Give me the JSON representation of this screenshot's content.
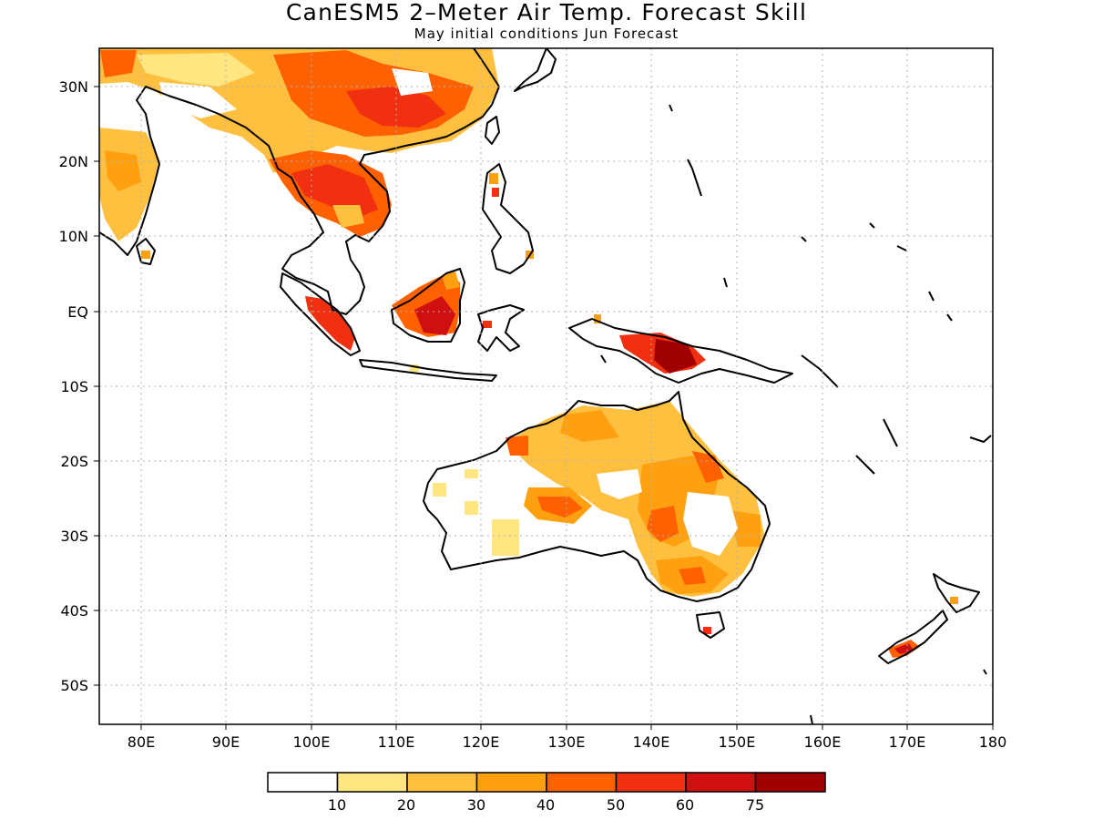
{
  "title": "CanESM5 2–Meter Air Temp. Forecast Skill",
  "subtitle": "May initial conditions  Jun Forecast",
  "map": {
    "region": "Maritime Continent / Australia / South & East Asia",
    "lon_range": [
      75,
      180
    ],
    "lat_range": [
      -55,
      35
    ],
    "grid": "dotted gray",
    "lon_ticks": [
      "80E",
      "90E",
      "100E",
      "110E",
      "120E",
      "130E",
      "140E",
      "150E",
      "160E",
      "170E",
      "180"
    ],
    "lat_ticks": [
      "30N",
      "20N",
      "10N",
      "EQ",
      "10S",
      "20S",
      "30S",
      "40S",
      "50S"
    ]
  },
  "colorbar": {
    "colors": [
      "#ffffff",
      "#ffe680",
      "#ffc040",
      "#ffa010",
      "#ff6000",
      "#f03010",
      "#d01010",
      "#a00000"
    ],
    "labels": [
      "10",
      "20",
      "30",
      "40",
      "50",
      "60",
      "75"
    ]
  }
}
